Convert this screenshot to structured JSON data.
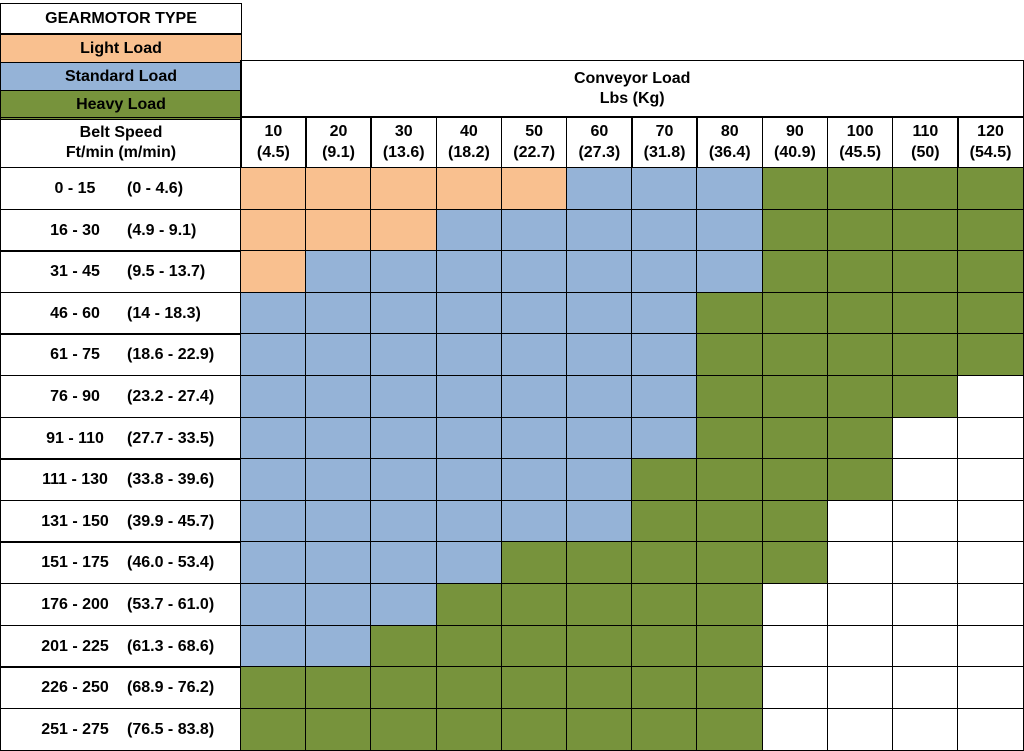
{
  "legend": {
    "title": "GEARMOTOR TYPE",
    "items": [
      {
        "key": "L",
        "label": "Light Load",
        "color": "#f9c08f"
      },
      {
        "key": "S",
        "label": "Standard Load",
        "color": "#95b3d7"
      },
      {
        "key": "H",
        "label": "Heavy Load",
        "color": "#77933c"
      }
    ]
  },
  "chart_data": {
    "type": "table",
    "title": "",
    "column_header": {
      "line1": "Conveyor Load",
      "line2": "Lbs (Kg)"
    },
    "row_header": {
      "line1": "Belt Speed",
      "line2": "Ft/min (m/min)"
    },
    "columns": [
      {
        "lbs": "10",
        "kg": "(4.5)"
      },
      {
        "lbs": "20",
        "kg": "(9.1)"
      },
      {
        "lbs": "30",
        "kg": "(13.6)"
      },
      {
        "lbs": "40",
        "kg": "(18.2)"
      },
      {
        "lbs": "50",
        "kg": "(22.7)"
      },
      {
        "lbs": "60",
        "kg": "(27.3)"
      },
      {
        "lbs": "70",
        "kg": "(31.8)"
      },
      {
        "lbs": "80",
        "kg": "(36.4)"
      },
      {
        "lbs": "90",
        "kg": "(40.9)"
      },
      {
        "lbs": "100",
        "kg": "(45.5)"
      },
      {
        "lbs": "110",
        "kg": "(50)"
      },
      {
        "lbs": "120",
        "kg": "(54.5)"
      }
    ],
    "rows": [
      {
        "ft": "0 - 15",
        "m": "(0 - 4.6)",
        "cells": [
          "L",
          "L",
          "L",
          "L",
          "L",
          "S",
          "S",
          "S",
          "H",
          "H",
          "H",
          "H"
        ]
      },
      {
        "ft": "16 - 30",
        "m": "(4.9 - 9.1)",
        "cells": [
          "L",
          "L",
          "L",
          "S",
          "S",
          "S",
          "S",
          "S",
          "H",
          "H",
          "H",
          "H"
        ]
      },
      {
        "ft": "31 - 45",
        "m": "(9.5 - 13.7)",
        "cells": [
          "L",
          "S",
          "S",
          "S",
          "S",
          "S",
          "S",
          "S",
          "H",
          "H",
          "H",
          "H"
        ]
      },
      {
        "ft": "46 - 60",
        "m": "(14 - 18.3)",
        "cells": [
          "S",
          "S",
          "S",
          "S",
          "S",
          "S",
          "S",
          "H",
          "H",
          "H",
          "H",
          "H"
        ]
      },
      {
        "ft": "61 - 75",
        "m": "(18.6 - 22.9)",
        "cells": [
          "S",
          "S",
          "S",
          "S",
          "S",
          "S",
          "S",
          "H",
          "H",
          "H",
          "H",
          "H"
        ]
      },
      {
        "ft": "76 - 90",
        "m": "(23.2 - 27.4)",
        "cells": [
          "S",
          "S",
          "S",
          "S",
          "S",
          "S",
          "S",
          "H",
          "H",
          "H",
          "H",
          ""
        ]
      },
      {
        "ft": "91 - 110",
        "m": "(27.7 - 33.5)",
        "cells": [
          "S",
          "S",
          "S",
          "S",
          "S",
          "S",
          "S",
          "H",
          "H",
          "H",
          "",
          ""
        ]
      },
      {
        "ft": "111 - 130",
        "m": "(33.8 - 39.6)",
        "cells": [
          "S",
          "S",
          "S",
          "S",
          "S",
          "S",
          "H",
          "H",
          "H",
          "H",
          "",
          ""
        ]
      },
      {
        "ft": "131 - 150",
        "m": "(39.9 - 45.7)",
        "cells": [
          "S",
          "S",
          "S",
          "S",
          "S",
          "S",
          "H",
          "H",
          "H",
          "",
          "",
          ""
        ]
      },
      {
        "ft": "151 - 175",
        "m": "(46.0 - 53.4)",
        "cells": [
          "S",
          "S",
          "S",
          "S",
          "H",
          "H",
          "H",
          "H",
          "H",
          "",
          "",
          ""
        ]
      },
      {
        "ft": "176 - 200",
        "m": "(53.7 - 61.0)",
        "cells": [
          "S",
          "S",
          "S",
          "H",
          "H",
          "H",
          "H",
          "H",
          "",
          "",
          "",
          ""
        ]
      },
      {
        "ft": "201 - 225",
        "m": "(61.3 - 68.6)",
        "cells": [
          "S",
          "S",
          "H",
          "H",
          "H",
          "H",
          "H",
          "H",
          "",
          "",
          "",
          ""
        ]
      },
      {
        "ft": "226 - 250",
        "m": "(68.9 - 76.2)",
        "cells": [
          "H",
          "H",
          "H",
          "H",
          "H",
          "H",
          "H",
          "H",
          "",
          "",
          "",
          ""
        ]
      },
      {
        "ft": "251 - 275",
        "m": "(76.5 - 83.8)",
        "cells": [
          "H",
          "H",
          "H",
          "H",
          "H",
          "H",
          "H",
          "H",
          "",
          "",
          "",
          ""
        ]
      }
    ]
  }
}
